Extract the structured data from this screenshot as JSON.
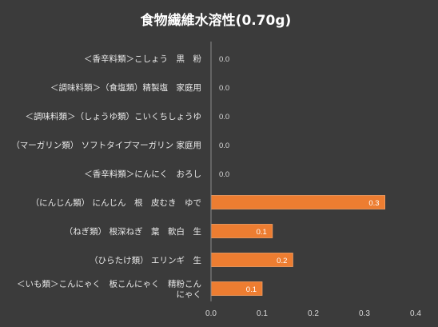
{
  "chart_data": {
    "type": "bar",
    "orientation": "horizontal",
    "title": "食物繊維水溶性(0.70g)",
    "categories": [
      "＜香辛料類＞こしょう　黒　粉",
      "＜調味料類＞（食塩類）精製塩　家庭用",
      "＜調味料類＞（しょうゆ類）こいくちしょうゆ",
      "（マーガリン類） ソフトタイプマーガリン 家庭用",
      "＜香辛料類＞にんにく　おろし",
      "（にんじん類） にんじん　根　皮むき　ゆで",
      "（ねぎ類） 根深ねぎ　葉　軟白　生",
      "（ひらたけ類） エリンギ　生",
      "＜いも類＞こんにゃく　板こんにゃく　精粉こんにゃく"
    ],
    "category_lines": [
      [
        "＜香辛料類＞こしょう　黒　粉"
      ],
      [
        "＜調味料類＞（食塩類）精製塩　家庭用"
      ],
      [
        "＜調味料類＞（しょうゆ類）こいくちしょうゆ"
      ],
      [
        "（マーガリン類） ソフトタイプマーガリン 家庭用"
      ],
      [
        "＜香辛料類＞にんにく　おろし"
      ],
      [
        "（にんじん類） にんじん　根　皮むき　ゆで"
      ],
      [
        "（ねぎ類） 根深ねぎ　葉　軟白　生"
      ],
      [
        "（ひらたけ類） エリンギ　生"
      ],
      [
        "＜いも類＞こんにゃく　板こんにゃく　精粉こん",
        "にゃく"
      ]
    ],
    "values": [
      0.0,
      0.0,
      0.0,
      0.0,
      0.0,
      0.34,
      0.12,
      0.16,
      0.1
    ],
    "data_labels": [
      "0.0",
      "0.0",
      "0.0",
      "0.0",
      "0.0",
      "0.3",
      "0.1",
      "0.2",
      "0.1"
    ],
    "xticks": [
      0.0,
      0.1,
      0.2,
      0.3,
      0.4
    ],
    "xtick_labels": [
      "0.0",
      "0.1",
      "0.2",
      "0.3",
      "0.4"
    ],
    "xlim": [
      0,
      0.4
    ],
    "xlabel": "",
    "ylabel": "",
    "grid": false,
    "legend": "none",
    "colors": {
      "background": "#3b3b3b",
      "bar_fill": "#ed7d31",
      "bar_stroke": "#f4a064",
      "data_label_inside": "#ffffff",
      "data_label_outside": "#d9d9d9",
      "axis": "#8c8c8c"
    }
  }
}
